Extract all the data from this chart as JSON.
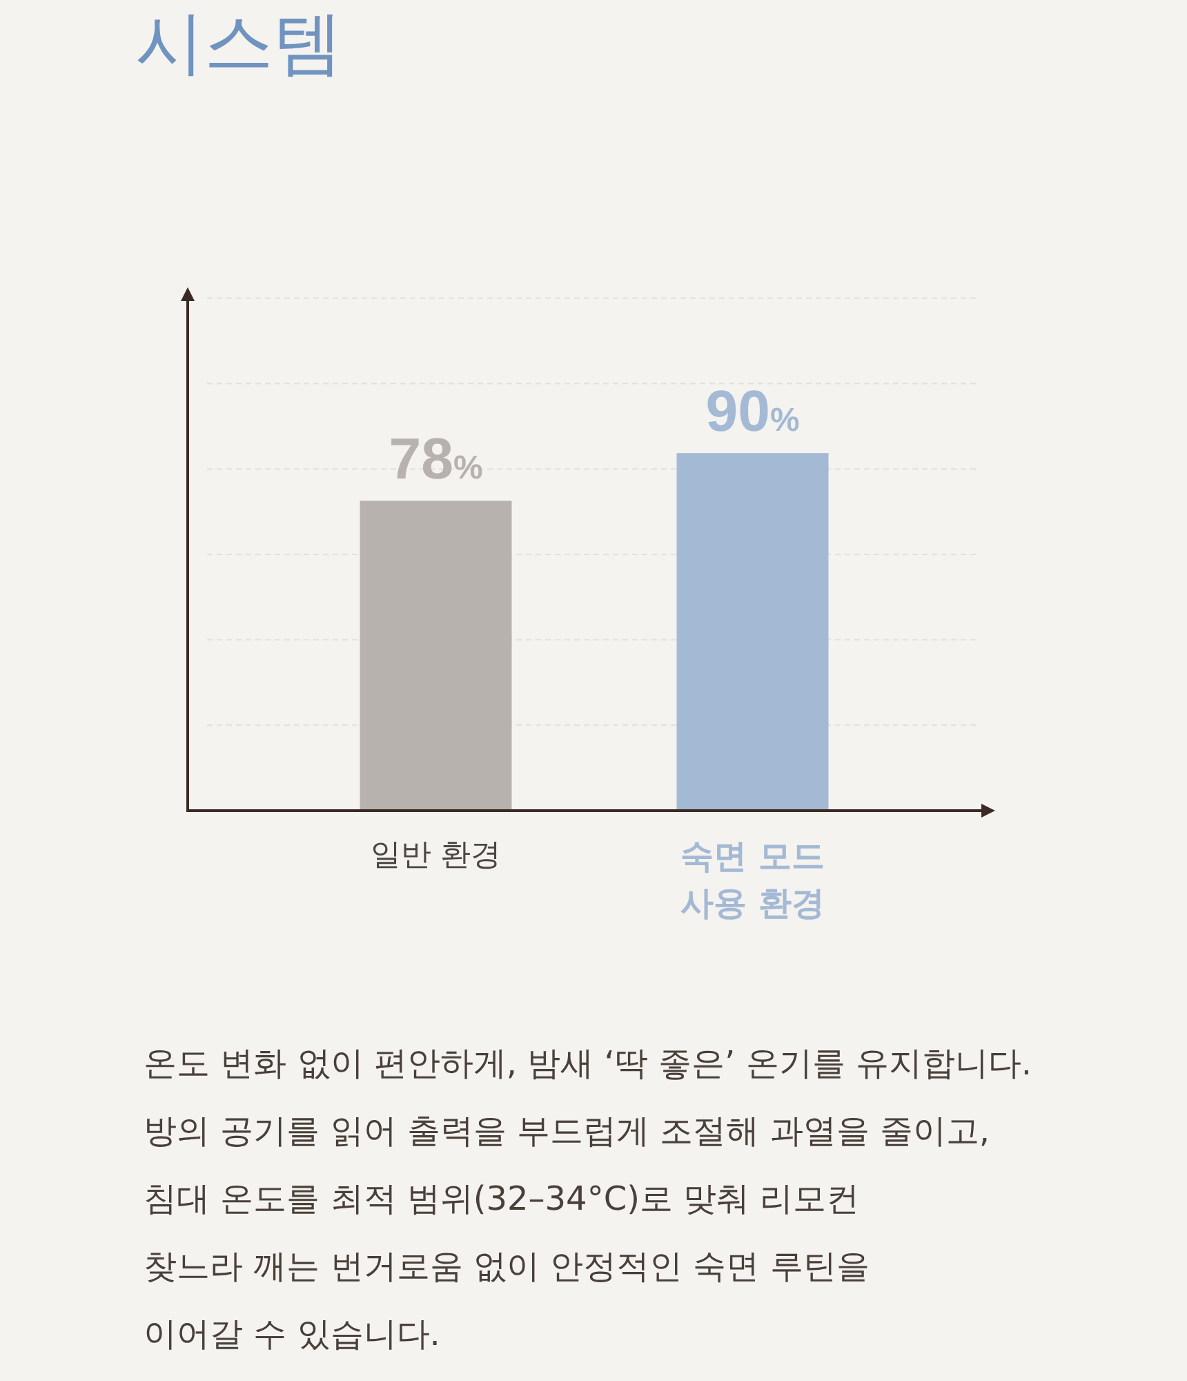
{
  "chart_data": {
    "type": "bar",
    "title": "시스템",
    "categories": [
      "일반 환경",
      "숙면 모드 사용 환경"
    ],
    "values": [
      78,
      90
    ],
    "colors": [
      "#b7b2ae",
      "#a4b9d4"
    ],
    "value_labels": [
      "78%",
      "90%"
    ],
    "ylim": [
      0,
      130
    ],
    "yticks": [
      {
        "value": 21.5,
        "label": null
      },
      {
        "value": 43,
        "label": null
      },
      {
        "value": 64.5,
        "label": null
      },
      {
        "value": 86,
        "label": null
      },
      {
        "value": 107.5,
        "label": null
      },
      {
        "value": 129,
        "label": null
      }
    ],
    "grid": "y",
    "tick_labels": "x",
    "annotations": [
      "온도 변화 없이 편안하게, 밤새 ‘딱 좋은’ 온기를 유지합니다.\n방의 공기를 읽어 출력을 부드럽게 조절해 과열을 줄이고,\n침대 온도를 최적 범위(32–34°C)로 맞춰 리모컨\n찾느라 깨는 번거로움 없이 안정적인 숙면 루틴을\n이어갈 수 있습니다."
    ]
  }
}
